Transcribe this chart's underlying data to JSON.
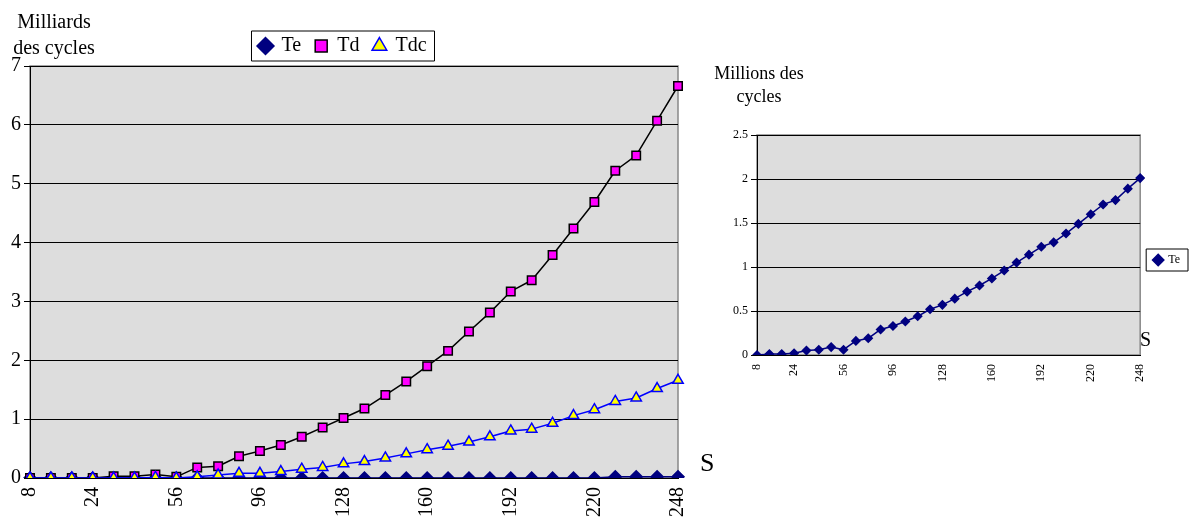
{
  "chart_data": [
    {
      "type": "line",
      "ylabel": "Milliards des cycles",
      "xlabel": "S",
      "categories": [
        "8",
        null,
        null,
        "24",
        null,
        null,
        null,
        "56",
        null,
        null,
        null,
        "96",
        null,
        null,
        null,
        "128",
        null,
        null,
        null,
        "160",
        null,
        null,
        null,
        "192",
        null,
        null,
        null,
        "220",
        null,
        null,
        null,
        "248"
      ],
      "series": [
        {
          "name": "Te",
          "color": "#000080",
          "marker": "diamond",
          "values": [
            0,
            0,
            0,
            0,
            0,
            0,
            0,
            0,
            0,
            0,
            0,
            0,
            0,
            0,
            0,
            0,
            0,
            0,
            0,
            0,
            0,
            0,
            0,
            0,
            0,
            0,
            0,
            0,
            0.02,
            0.02,
            0.02,
            0.02
          ]
        },
        {
          "name": "Td",
          "color": "#ff00ff",
          "marker": "square",
          "values": [
            0,
            0,
            0,
            0,
            0.03,
            0.03,
            0.06,
            0.02,
            0.18,
            0.2,
            0.37,
            0.46,
            0.56,
            0.7,
            0.86,
            1.02,
            1.18,
            1.41,
            1.64,
            1.9,
            2.16,
            2.49,
            2.81,
            3.17,
            3.36,
            3.79,
            4.24,
            4.69,
            5.22,
            5.48,
            6.07,
            6.66
          ]
        },
        {
          "name": "Tdc",
          "color": "#ffff00",
          "marker": "triangle",
          "values": [
            0,
            0,
            0,
            0,
            0,
            0,
            0.01,
            0,
            0.02,
            0.05,
            0.08,
            0.08,
            0.11,
            0.15,
            0.18,
            0.24,
            0.28,
            0.34,
            0.41,
            0.48,
            0.54,
            0.61,
            0.7,
            0.8,
            0.83,
            0.93,
            1.06,
            1.16,
            1.3,
            1.36,
            1.52,
            1.66
          ]
        }
      ],
      "ylim": [
        0,
        7
      ],
      "yticks": [
        0,
        1,
        2,
        3,
        4,
        5,
        6,
        7
      ],
      "grid": "y",
      "legend": "top"
    },
    {
      "type": "line",
      "ylabel": "Millions des cycles",
      "xlabel": "S",
      "categories": [
        "8",
        null,
        null,
        "24",
        null,
        null,
        null,
        "56",
        null,
        null,
        null,
        "96",
        null,
        null,
        null,
        "128",
        null,
        null,
        null,
        "160",
        null,
        null,
        null,
        "192",
        null,
        null,
        null,
        "220",
        null,
        null,
        null,
        "248"
      ],
      "series": [
        {
          "name": "Te",
          "color": "#000080",
          "marker": "diamond",
          "values": [
            0,
            0.01,
            0.01,
            0.02,
            0.05,
            0.06,
            0.09,
            0.06,
            0.16,
            0.19,
            0.29,
            0.33,
            0.38,
            0.44,
            0.52,
            0.57,
            0.64,
            0.72,
            0.79,
            0.87,
            0.96,
            1.05,
            1.14,
            1.23,
            1.28,
            1.38,
            1.49,
            1.6,
            1.71,
            1.76,
            1.89,
            2.01
          ]
        }
      ],
      "ylim": [
        0,
        2.5
      ],
      "yticks": [
        0,
        0.5,
        1,
        1.5,
        2,
        2.5
      ],
      "grid": "y",
      "legend": "right"
    }
  ]
}
